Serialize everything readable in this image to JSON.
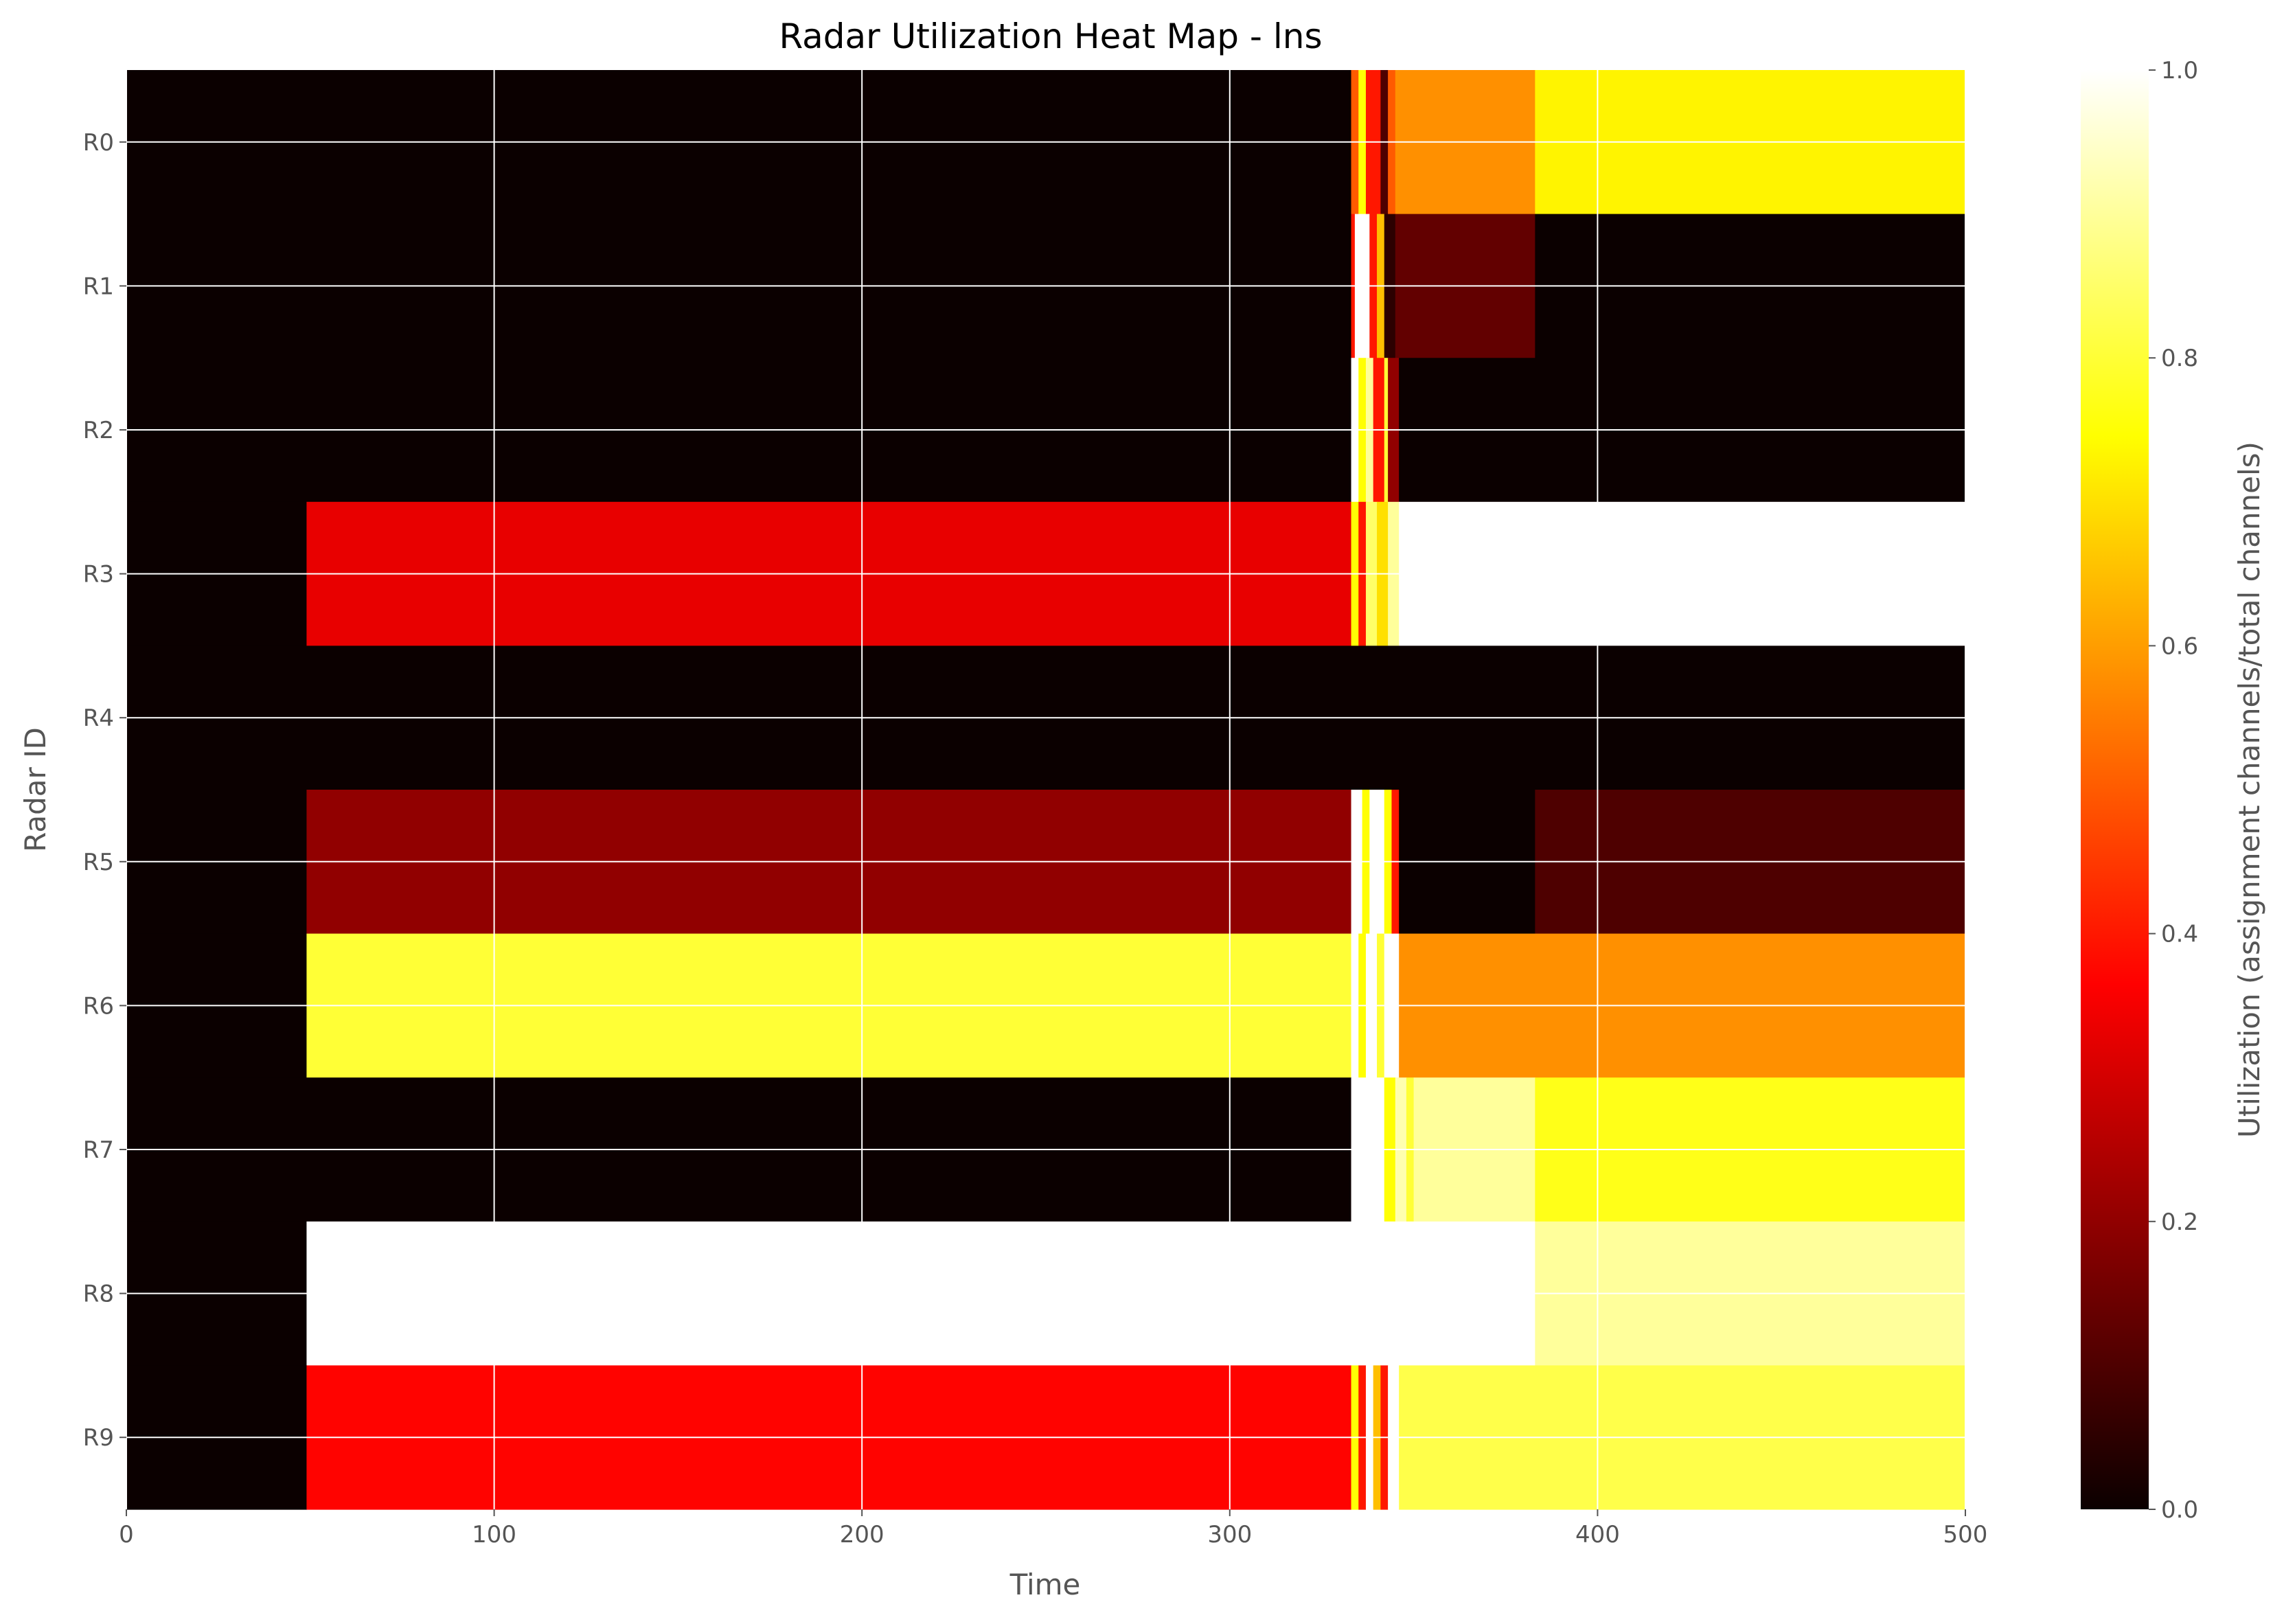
{
  "chart_data": {
    "type": "heatmap",
    "title": "Radar Utilization Heat Map - lns",
    "xlabel": "Time",
    "ylabel": "Radar ID",
    "xlim": [
      0,
      500
    ],
    "x_ticks": [
      0,
      100,
      200,
      300,
      400,
      500
    ],
    "y_categories": [
      "R0",
      "R1",
      "R2",
      "R3",
      "R4",
      "R5",
      "R6",
      "R7",
      "R8",
      "R9"
    ],
    "colormap": "hot",
    "colorbar": {
      "label": "Utilization (assignment channels/total channels)",
      "range": [
        0,
        1
      ],
      "ticks": [
        0.0,
        0.2,
        0.4,
        0.6,
        0.8,
        1.0
      ]
    },
    "grid": true,
    "rows": [
      {
        "radar": "R0",
        "segments": [
          [
            0,
            333,
            0.0
          ],
          [
            333,
            335,
            0.5
          ],
          [
            335,
            337,
            0.75
          ],
          [
            337,
            341,
            0.4
          ],
          [
            341,
            343,
            0.1
          ],
          [
            343,
            345,
            0.5
          ],
          [
            345,
            383,
            0.58
          ],
          [
            383,
            500,
            0.73
          ]
        ]
      },
      {
        "radar": "R1",
        "segments": [
          [
            0,
            333,
            0.0
          ],
          [
            333,
            334,
            0.4
          ],
          [
            334,
            338,
            1.0
          ],
          [
            338,
            340,
            0.4
          ],
          [
            340,
            342,
            0.65
          ],
          [
            342,
            345,
            0.05
          ],
          [
            345,
            383,
            0.13
          ],
          [
            383,
            500,
            0.0
          ]
        ]
      },
      {
        "radar": "R2",
        "segments": [
          [
            0,
            333,
            0.0
          ],
          [
            333,
            335,
            1.0
          ],
          [
            335,
            337,
            0.75
          ],
          [
            337,
            339,
            0.9
          ],
          [
            339,
            342,
            0.4
          ],
          [
            342,
            343,
            0.8
          ],
          [
            343,
            346,
            0.2
          ],
          [
            346,
            500,
            0.0
          ]
        ]
      },
      {
        "radar": "R3",
        "segments": [
          [
            0,
            49,
            0.0
          ],
          [
            49,
            333,
            0.33
          ],
          [
            333,
            335,
            0.75
          ],
          [
            335,
            337,
            0.4
          ],
          [
            337,
            340,
            0.85
          ],
          [
            340,
            343,
            0.7
          ],
          [
            343,
            346,
            0.9
          ],
          [
            346,
            500,
            1.0
          ]
        ]
      },
      {
        "radar": "R4",
        "segments": [
          [
            0,
            500,
            0.0
          ]
        ]
      },
      {
        "radar": "R5",
        "segments": [
          [
            0,
            49,
            0.0
          ],
          [
            49,
            333,
            0.2
          ],
          [
            333,
            336,
            1.0
          ],
          [
            336,
            338,
            0.75
          ],
          [
            338,
            342,
            1.0
          ],
          [
            342,
            344,
            0.75
          ],
          [
            344,
            346,
            0.4
          ],
          [
            346,
            383,
            0.0
          ],
          [
            383,
            500,
            0.1
          ]
        ]
      },
      {
        "radar": "R6",
        "segments": [
          [
            0,
            49,
            0.0
          ],
          [
            49,
            333,
            0.8
          ],
          [
            333,
            335,
            1.0
          ],
          [
            335,
            337,
            0.75
          ],
          [
            337,
            340,
            1.0
          ],
          [
            340,
            342,
            0.8
          ],
          [
            342,
            346,
            1.0
          ],
          [
            346,
            500,
            0.58
          ]
        ]
      },
      {
        "radar": "R7",
        "segments": [
          [
            0,
            333,
            0.0
          ],
          [
            333,
            342,
            1.0
          ],
          [
            342,
            345,
            0.75
          ],
          [
            345,
            348,
            0.92
          ],
          [
            348,
            350,
            0.8
          ],
          [
            350,
            383,
            0.9
          ],
          [
            383,
            500,
            0.77
          ]
        ]
      },
      {
        "radar": "R8",
        "segments": [
          [
            0,
            49,
            0.0
          ],
          [
            49,
            383,
            1.0
          ],
          [
            383,
            500,
            0.9
          ]
        ]
      },
      {
        "radar": "R9",
        "segments": [
          [
            0,
            49,
            0.0
          ],
          [
            49,
            333,
            0.37
          ],
          [
            333,
            335,
            0.75
          ],
          [
            335,
            337,
            0.4
          ],
          [
            337,
            339,
            1.0
          ],
          [
            339,
            341,
            0.65
          ],
          [
            341,
            343,
            0.4
          ],
          [
            343,
            346,
            1.0
          ],
          [
            346,
            500,
            0.82
          ]
        ]
      }
    ]
  }
}
